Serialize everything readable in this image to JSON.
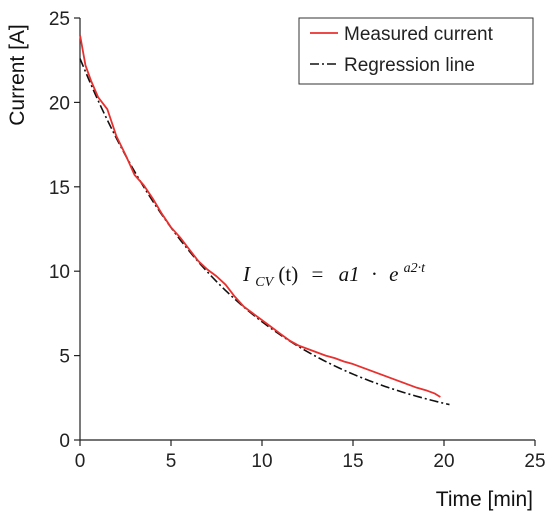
{
  "chart_data": {
    "type": "line",
    "title": "",
    "xlabel": "Time [min]",
    "ylabel": "Current [A]",
    "xlim": [
      0,
      25
    ],
    "ylim": [
      0,
      25
    ],
    "xticks": [
      0,
      5,
      10,
      15,
      20,
      25
    ],
    "yticks": [
      0,
      5,
      10,
      15,
      20,
      25
    ],
    "grid": false,
    "legend_position": "top-right",
    "series": [
      {
        "name": "Measured current",
        "color": "#e8312f",
        "style": "solid",
        "x": [
          0,
          0.3,
          0.6,
          1.0,
          1.5,
          2.0,
          2.5,
          3.0,
          3.5,
          4.0,
          4.5,
          5.0,
          5.5,
          6.0,
          6.5,
          7.0,
          7.5,
          8.0,
          8.5,
          9.0,
          9.5,
          10.0,
          10.5,
          11.0,
          11.5,
          12.0,
          12.5,
          13.0,
          13.5,
          14.0,
          14.5,
          15.0,
          15.5,
          16.0,
          16.5,
          17.0,
          17.5,
          18.0,
          18.5,
          19.0,
          19.5,
          19.8
        ],
        "y": [
          24.0,
          22.2,
          21.3,
          20.3,
          19.6,
          18.0,
          16.9,
          15.7,
          15.1,
          14.3,
          13.4,
          12.6,
          12.0,
          11.3,
          10.6,
          10.1,
          9.7,
          9.2,
          8.5,
          7.9,
          7.5,
          7.1,
          6.7,
          6.3,
          5.9,
          5.6,
          5.4,
          5.2,
          5.0,
          4.85,
          4.65,
          4.5,
          4.3,
          4.1,
          3.9,
          3.7,
          3.5,
          3.3,
          3.1,
          2.95,
          2.75,
          2.55
        ]
      },
      {
        "name": "Regression line",
        "color": "#111111",
        "style": "dash-dot",
        "a1": 22.6,
        "a2": -0.1171,
        "x_range": [
          0,
          20.3
        ]
      }
    ],
    "annotations": [
      {
        "text": "ICV(t) = a1 · e^(a2·t)",
        "x": 12.5,
        "y": 9.7
      }
    ]
  },
  "formula": {
    "func": "I",
    "func_sub": "CV",
    "arg": "(t)",
    "eq": "=",
    "coef": "a1",
    "dot": "·",
    "base": "e",
    "exponent": "a2·t"
  }
}
